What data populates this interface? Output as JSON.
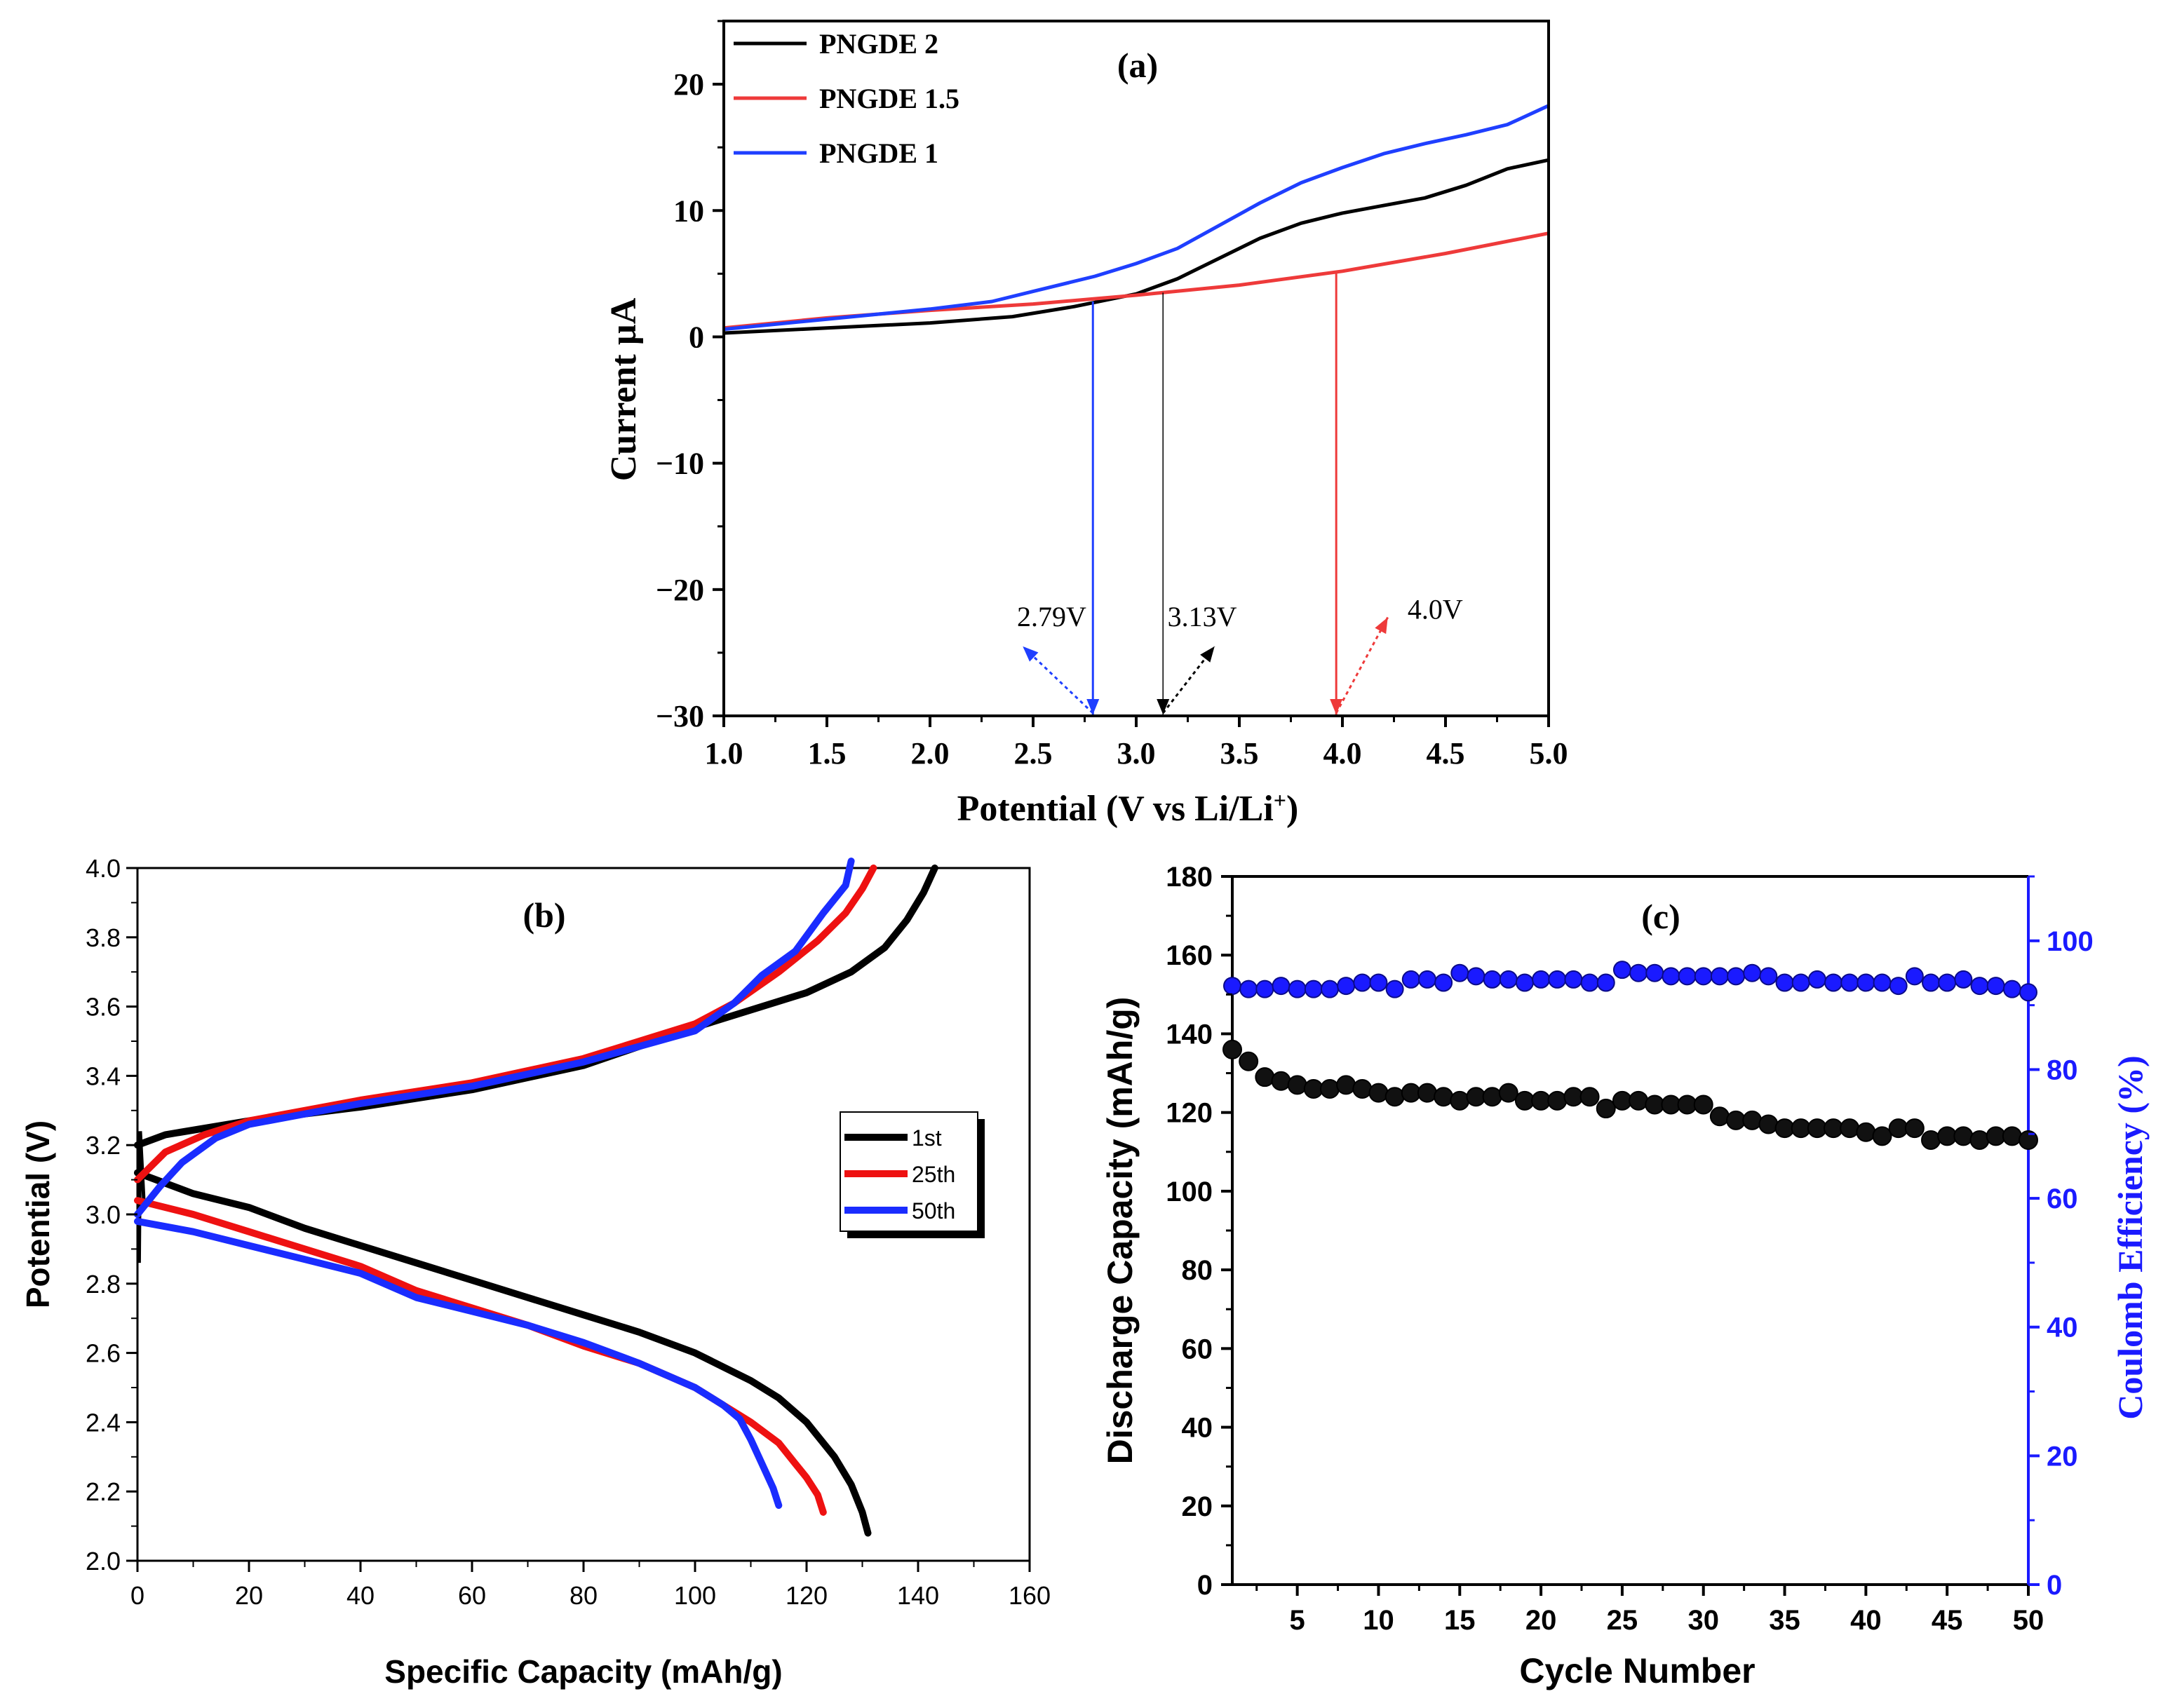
{
  "chart_data": [
    {
      "id": "a",
      "type": "line",
      "panel_label": "(a)",
      "xlabel": "Potential (V vs Li/Li",
      "xlabel_sup": "+",
      "xlabel_end": ")",
      "ylabel": "Current  µA",
      "xlim": [
        1.0,
        5.0
      ],
      "ylim": [
        -30,
        25
      ],
      "xticks": [
        "1.0",
        "1.5",
        "2.0",
        "2.5",
        "3.0",
        "3.5",
        "4.0",
        "4.5",
        "5.0"
      ],
      "yticks": [
        "-30",
        "-20",
        "-10",
        "0",
        "10",
        "20"
      ],
      "legend_position": "top-left",
      "series": [
        {
          "name": "PNGDE 2",
          "color": "#000000",
          "x": [
            1.0,
            1.5,
            2.0,
            2.4,
            2.7,
            3.0,
            3.2,
            3.4,
            3.6,
            3.8,
            4.0,
            4.2,
            4.4,
            4.6,
            4.8,
            5.0
          ],
          "y": [
            0.3,
            0.7,
            1.1,
            1.6,
            2.4,
            3.4,
            4.6,
            6.2,
            7.8,
            9.0,
            9.8,
            10.4,
            11.0,
            12.0,
            13.3,
            14.0
          ]
        },
        {
          "name": "PNGDE 1.5",
          "color": "#ee3a3a",
          "x": [
            1.0,
            1.5,
            2.0,
            2.5,
            3.0,
            3.5,
            4.0,
            4.5,
            5.0
          ],
          "y": [
            0.7,
            1.5,
            2.1,
            2.6,
            3.3,
            4.1,
            5.2,
            6.6,
            8.2
          ]
        },
        {
          "name": "PNGDE 1",
          "color": "#1f3fff",
          "x": [
            1.0,
            1.5,
            2.0,
            2.3,
            2.5,
            2.8,
            3.0,
            3.2,
            3.4,
            3.6,
            3.8,
            4.0,
            4.2,
            4.4,
            4.6,
            4.8,
            5.0
          ],
          "y": [
            0.6,
            1.4,
            2.2,
            2.8,
            3.6,
            4.8,
            5.8,
            7.0,
            8.8,
            10.6,
            12.2,
            13.4,
            14.5,
            15.3,
            16.0,
            16.8,
            18.3
          ]
        }
      ],
      "annotations": [
        {
          "label": "2.79V",
          "x": 2.79,
          "color": "#1f3fff",
          "from_y": 2.8,
          "text_x": 2.59,
          "text_y": -22.9,
          "arrow_to_x": 2.45,
          "arrow_to_y": -24.5
        },
        {
          "label": "3.13V",
          "x": 3.13,
          "color": "#000000",
          "from_y": 3.5,
          "text_x": 3.32,
          "text_y": -22.9,
          "arrow_to_x": 3.38,
          "arrow_to_y": -24.5
        },
        {
          "label": "4.0V",
          "x": 3.97,
          "color": "#ee3a3a",
          "from_y": 5.2,
          "text_x": 4.45,
          "text_y": -22.3,
          "arrow_to_x": 4.22,
          "arrow_to_y": -22.2
        }
      ]
    },
    {
      "id": "b",
      "type": "line",
      "panel_label": "(b)",
      "xlabel": "Specific Capacity (mAh/g)",
      "ylabel": "Potential (V)",
      "xlim": [
        0,
        160
      ],
      "ylim": [
        2.0,
        4.0
      ],
      "xticks": [
        "0",
        "20",
        "40",
        "60",
        "80",
        "100",
        "120",
        "140",
        "160"
      ],
      "yticks": [
        "2.0",
        "2.2",
        "2.4",
        "2.6",
        "2.8",
        "3.0",
        "3.2",
        "3.4",
        "3.6",
        "3.8",
        "4.0"
      ],
      "legend_position": "center-right",
      "series": [
        {
          "name": "1st",
          "color": "#000000",
          "charge_x": [
            0,
            5,
            20,
            40,
            60,
            80,
            100,
            110,
            120,
            128,
            134,
            138,
            141,
            143
          ],
          "charge_y": [
            3.2,
            3.23,
            3.27,
            3.31,
            3.36,
            3.43,
            3.54,
            3.59,
            3.64,
            3.7,
            3.77,
            3.85,
            3.93,
            4.0
          ],
          "discharge_x": [
            0,
            10,
            20,
            30,
            40,
            50,
            60,
            70,
            80,
            90,
            100,
            110,
            115,
            120,
            125,
            128,
            130,
            131
          ],
          "discharge_y": [
            3.12,
            3.06,
            3.02,
            2.96,
            2.91,
            2.86,
            2.81,
            2.76,
            2.71,
            2.66,
            2.6,
            2.52,
            2.47,
            2.4,
            2.3,
            2.22,
            2.14,
            2.08
          ]
        },
        {
          "name": "25th",
          "color": "#ee1111",
          "charge_x": [
            0,
            5,
            12,
            20,
            40,
            60,
            80,
            100,
            107,
            115,
            122,
            127,
            130,
            132
          ],
          "charge_y": [
            3.1,
            3.18,
            3.23,
            3.27,
            3.33,
            3.38,
            3.45,
            3.55,
            3.61,
            3.7,
            3.79,
            3.87,
            3.94,
            4.0
          ],
          "discharge_x": [
            0,
            10,
            20,
            30,
            40,
            50,
            60,
            70,
            80,
            90,
            100,
            105,
            110,
            115,
            118,
            120,
            122,
            123
          ],
          "discharge_y": [
            3.04,
            3.0,
            2.95,
            2.9,
            2.85,
            2.78,
            2.73,
            2.68,
            2.62,
            2.57,
            2.5,
            2.45,
            2.4,
            2.34,
            2.28,
            2.24,
            2.19,
            2.14
          ]
        },
        {
          "name": "50th",
          "color": "#1a2cff",
          "charge_x": [
            0,
            4,
            8,
            14,
            20,
            40,
            60,
            80,
            100,
            107,
            112,
            118,
            123,
            127,
            128
          ],
          "charge_y": [
            3.0,
            3.08,
            3.15,
            3.22,
            3.26,
            3.32,
            3.37,
            3.44,
            3.53,
            3.61,
            3.69,
            3.76,
            3.87,
            3.95,
            4.02
          ],
          "discharge_x": [
            0,
            10,
            20,
            30,
            40,
            50,
            60,
            70,
            80,
            90,
            100,
            105,
            108,
            110,
            112,
            114,
            115
          ],
          "discharge_y": [
            2.98,
            2.95,
            2.91,
            2.87,
            2.83,
            2.76,
            2.72,
            2.68,
            2.63,
            2.57,
            2.5,
            2.45,
            2.41,
            2.35,
            2.28,
            2.21,
            2.16
          ]
        }
      ]
    },
    {
      "id": "c",
      "type": "scatter",
      "panel_label": "(c)",
      "xlabel": "Cycle Number",
      "ylabel": "Discharge Capacity (mAh/g)",
      "ylabel_right": "Coulomb Efficiency (%)",
      "xlim": [
        1,
        50
      ],
      "ylim": [
        0,
        180
      ],
      "ylim_right": [
        0,
        110
      ],
      "xticks": [
        "5",
        "10",
        "15",
        "20",
        "25",
        "30",
        "35",
        "40",
        "45",
        "50"
      ],
      "yticks": [
        "0",
        "20",
        "40",
        "60",
        "80",
        "100",
        "120",
        "140",
        "160",
        "180"
      ],
      "yticks_right": [
        "0",
        "20",
        "40",
        "60",
        "80",
        "100"
      ],
      "cycles": [
        1,
        2,
        3,
        4,
        5,
        6,
        7,
        8,
        9,
        10,
        11,
        12,
        13,
        14,
        15,
        16,
        17,
        18,
        19,
        20,
        21,
        22,
        23,
        24,
        25,
        26,
        27,
        28,
        29,
        30,
        31,
        32,
        33,
        34,
        35,
        36,
        37,
        38,
        39,
        40,
        41,
        42,
        43,
        44,
        45,
        46,
        47,
        48,
        49,
        50
      ],
      "capacity": [
        136,
        133,
        129,
        128,
        127,
        126,
        126,
        127,
        126,
        125,
        124,
        125,
        125,
        124,
        123,
        124,
        124,
        125,
        123,
        123,
        123,
        124,
        124,
        121,
        123,
        123,
        122,
        122,
        122,
        122,
        119,
        118,
        118,
        117,
        116,
        116,
        116,
        116,
        116,
        115,
        114,
        116,
        116,
        113,
        114,
        114,
        113,
        114,
        114,
        113
      ],
      "efficiency": [
        93,
        92.5,
        92.5,
        93,
        92.5,
        92.5,
        92.5,
        93,
        93.5,
        93.5,
        92.5,
        94,
        94,
        93.5,
        95,
        94.5,
        94,
        94,
        93.5,
        94,
        94,
        94,
        93.5,
        93.5,
        95.5,
        95,
        95,
        94.5,
        94.5,
        94.5,
        94.5,
        94.5,
        95,
        94.5,
        93.5,
        93.5,
        94,
        93.5,
        93.5,
        93.5,
        93.5,
        93,
        94.5,
        93.5,
        93.5,
        94,
        93,
        93,
        92.5,
        92
      ],
      "capacity_color": "#000000",
      "efficiency_color": "#1a1aff"
    }
  ]
}
